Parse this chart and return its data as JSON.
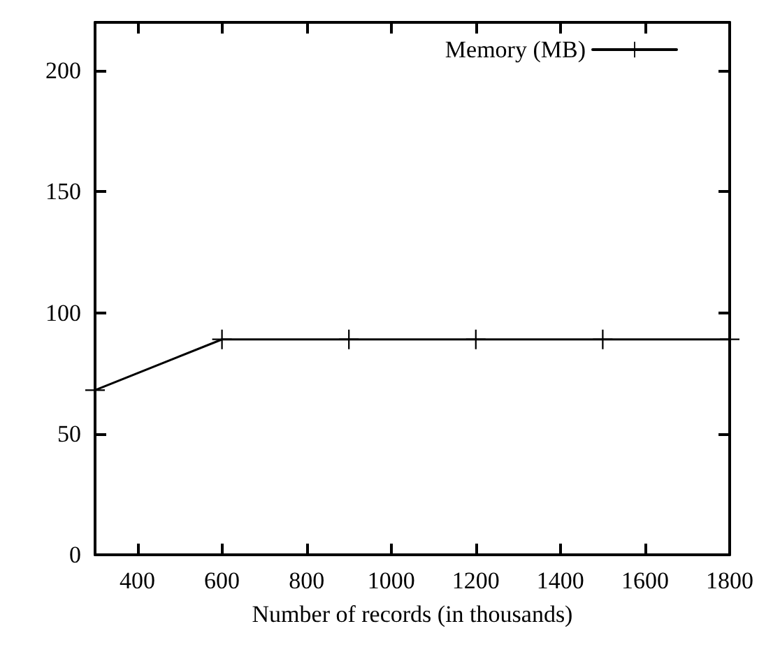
{
  "chart_data": {
    "type": "line",
    "xlabel": "Number of records (in thousands)",
    "x": [
      300,
      600,
      900,
      1200,
      1500,
      1800
    ],
    "series": [
      {
        "name": "Memory (MB)",
        "color": "#000000",
        "values": [
          68,
          89,
          89,
          89,
          89,
          89
        ]
      }
    ],
    "xlim": [
      300,
      1800
    ],
    "xticks": [
      400,
      600,
      800,
      1000,
      1200,
      1400,
      1600,
      1800
    ],
    "ylim": [
      0,
      220
    ],
    "yticks": [
      0,
      50,
      100,
      150,
      200
    ],
    "grid": false,
    "legend": "top right",
    "marker": "cross",
    "line_style": "solid"
  }
}
